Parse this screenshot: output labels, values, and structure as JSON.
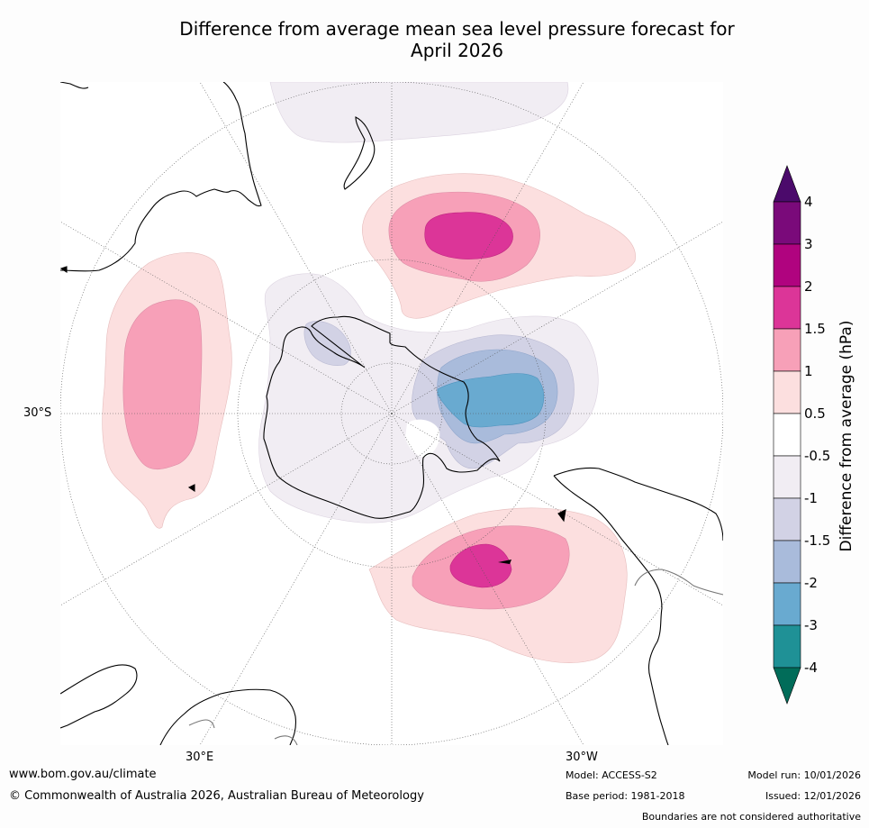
{
  "title": {
    "line1": "Difference from average mean sea level pressure forecast for",
    "line2": "April 2026"
  },
  "map": {
    "projection": "south-polar-stereographic",
    "labels": {
      "lat_30s": "30°S",
      "lon_30e": "30°E",
      "lon_30w": "30°W"
    },
    "anomaly_regions": [
      {
        "name": "pacific-positive",
        "category": "1.5 to 2",
        "max": 2
      },
      {
        "name": "indian-ocean-positive",
        "category": "1 to 1.5",
        "max": 1.5
      },
      {
        "name": "atlantic-positive",
        "category": "1.5 to 2",
        "max": 2
      },
      {
        "name": "weddell-negative",
        "category": "-3 to -2",
        "min": -3
      },
      {
        "name": "antarctic-slight-negative",
        "category": "-1 to -0.5",
        "min": -1
      }
    ],
    "colors": {
      "land_outline": "#000000",
      "graticule": "#555555",
      "ocean": "#ffffff"
    }
  },
  "colorbar": {
    "title": "Difference from average (hPa)",
    "ticks": [
      "4",
      "3",
      "2",
      "1.5",
      "1",
      "0.5",
      "-0.5",
      "-1",
      "-1.5",
      "-2",
      "-3",
      "-4"
    ],
    "bins": [
      {
        "range": "> 4",
        "color": "#4b0a6b"
      },
      {
        "range": "3 to 4",
        "color": "#7a0a7a"
      },
      {
        "range": "2 to 3",
        "color": "#b0037f"
      },
      {
        "range": "1.5 to 2",
        "color": "#dc3598"
      },
      {
        "range": "1 to 1.5",
        "color": "#f7a0b8"
      },
      {
        "range": "0.5 to 1",
        "color": "#fcdfdf"
      },
      {
        "range": "-0.5 to 0.5",
        "color": "#ffffff"
      },
      {
        "range": "-1 to -0.5",
        "color": "#f1edf3"
      },
      {
        "range": "-1.5 to -1",
        "color": "#d2d2e5"
      },
      {
        "range": "-2 to -1.5",
        "color": "#a9bbdb"
      },
      {
        "range": "-3 to -2",
        "color": "#69aad0"
      },
      {
        "range": "-4 to -3",
        "color": "#1f9196"
      },
      {
        "range": "< -4",
        "color": "#016c59"
      }
    ]
  },
  "footer": {
    "url": "www.bom.gov.au/climate",
    "copyright": "© Commonwealth of Australia 2026, Australian Bureau of Meteorology",
    "model": "Model: ACCESS-S2",
    "base_period": "Base period: 1981-2018",
    "model_run": "Model run: 10/01/2026",
    "issued": "Issued: 12/01/2026",
    "disclaimer": "Boundaries are not considered authoritative"
  }
}
